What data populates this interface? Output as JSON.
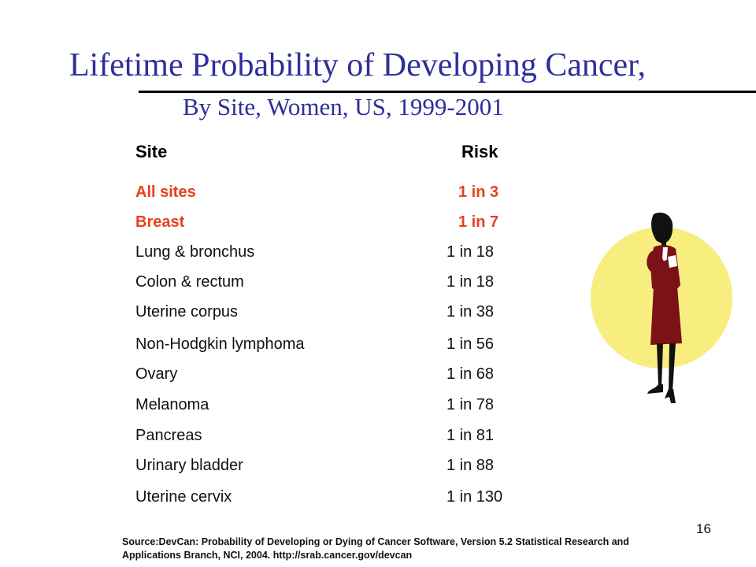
{
  "slide": {
    "title": "Lifetime Probability of Developing Cancer,",
    "subtitle": "By Site, Women, US, 1999-2001",
    "page_number": "16"
  },
  "table": {
    "headers": {
      "site": "Site",
      "risk": "Risk"
    },
    "rows": [
      {
        "site": "All sites",
        "risk": "1 in 3",
        "highlight": true
      },
      {
        "site": "Breast",
        "risk": "1 in 7",
        "highlight": true
      },
      {
        "site": "Lung & bronchus",
        "risk": "1 in 18",
        "highlight": false
      },
      {
        "site": "Colon & rectum",
        "risk": "1 in 18",
        "highlight": false
      },
      {
        "site": "Uterine corpus",
        "risk": "1 in 38",
        "highlight": false
      },
      {
        "site": "Non-Hodgkin lymphoma",
        "risk": "1 in 56",
        "highlight": false
      },
      {
        "site": "Ovary",
        "risk": "1 in 68",
        "highlight": false
      },
      {
        "site": "Melanoma",
        "risk": "1 in 78",
        "highlight": false
      },
      {
        "site": "Pancreas",
        "risk": "1 in 81",
        "highlight": false
      },
      {
        "site": "Urinary bladder",
        "risk": "1 in 88",
        "highlight": false
      },
      {
        "site": "Uterine cervix",
        "risk": "1 in 130",
        "highlight": false
      }
    ]
  },
  "source": {
    "line1": "Source:DevCan: Probability of Developing or Dying of Cancer Software, Version 5.2 Statistical Research and",
    "line2": "Applications Branch, NCI, 2004. http://srab.cancer.gov/devcan"
  },
  "colors": {
    "title": "#2e2e9a",
    "highlight": "#e8401c",
    "clipart_circle": "#f7ee7f",
    "clipart_suit": "#7a1218"
  },
  "decoration": {
    "clipart": "businesswoman-clipart"
  }
}
